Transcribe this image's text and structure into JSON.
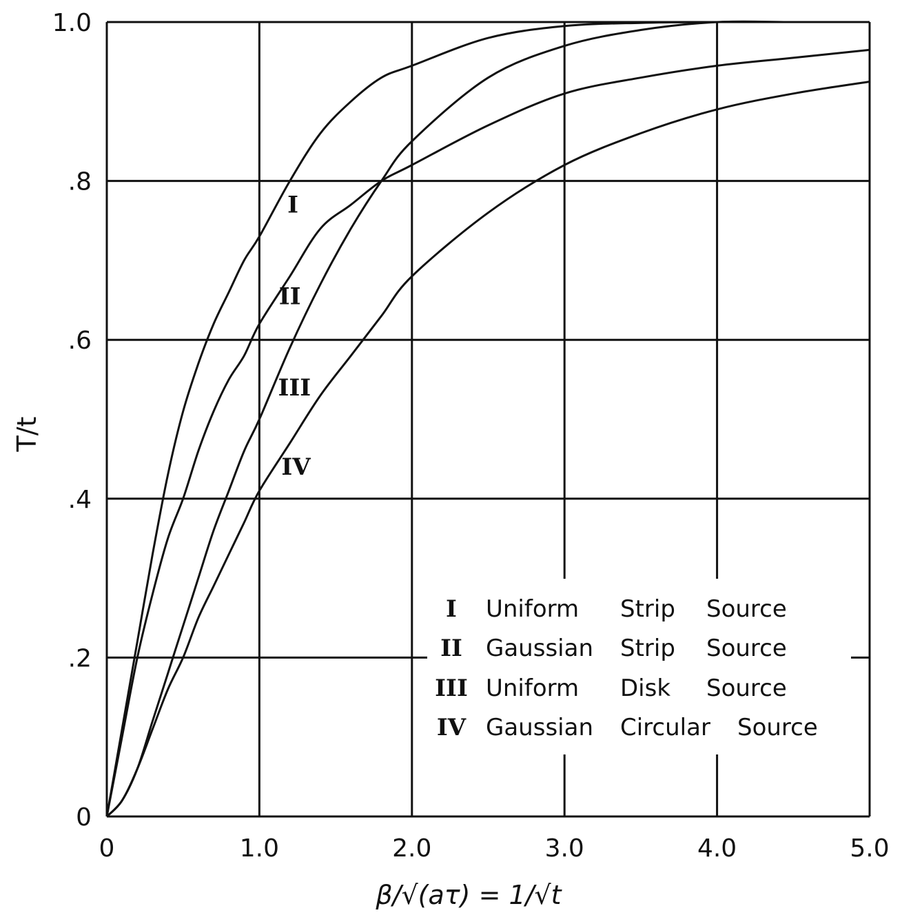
{
  "chart_data": {
    "type": "line",
    "title": "",
    "xlabel": "β/√(aτ) = 1/√t",
    "ylabel": "T/t",
    "xlim": [
      0,
      5
    ],
    "ylim": [
      0,
      1
    ],
    "grid": true,
    "legend_position": "bottom-right",
    "x_ticks": [
      0,
      1,
      2,
      3,
      4,
      5
    ],
    "x_tick_labels": [
      "0",
      "1.0",
      "2.0",
      "3.0",
      "4.0",
      "5.0"
    ],
    "y_ticks": [
      0,
      0.2,
      0.4,
      0.6,
      0.8,
      1.0
    ],
    "y_tick_labels": [
      "0",
      ".2",
      ".4",
      ".6",
      ".8",
      "1.0"
    ],
    "series": [
      {
        "name": "Uniform Strip Source",
        "numeral": "I",
        "x": [
          0,
          0.1,
          0.2,
          0.3,
          0.4,
          0.5,
          0.6,
          0.7,
          0.8,
          0.9,
          1.0,
          1.2,
          1.4,
          1.6,
          1.8,
          2.0,
          2.5,
          3.0,
          3.5,
          4.0,
          4.5,
          5.0
        ],
        "y": [
          0,
          0.11,
          0.22,
          0.33,
          0.43,
          0.51,
          0.57,
          0.62,
          0.66,
          0.7,
          0.73,
          0.8,
          0.86,
          0.9,
          0.93,
          0.945,
          0.98,
          0.995,
          0.999,
          1.0,
          1.0,
          1.0
        ]
      },
      {
        "name": "Gaussian Strip Source",
        "numeral": "II",
        "x": [
          0,
          0.1,
          0.2,
          0.3,
          0.4,
          0.5,
          0.6,
          0.7,
          0.8,
          0.9,
          1.0,
          1.2,
          1.4,
          1.6,
          1.8,
          2.0,
          2.5,
          3.0,
          3.5,
          4.0,
          4.5,
          5.0
        ],
        "y": [
          0,
          0.1,
          0.2,
          0.28,
          0.35,
          0.4,
          0.46,
          0.51,
          0.55,
          0.58,
          0.62,
          0.68,
          0.74,
          0.77,
          0.8,
          0.82,
          0.87,
          0.91,
          0.93,
          0.945,
          0.955,
          0.965
        ]
      },
      {
        "name": "Uniform Disk Source",
        "numeral": "III",
        "x": [
          0,
          0.1,
          0.2,
          0.3,
          0.4,
          0.5,
          0.6,
          0.7,
          0.8,
          0.9,
          1.0,
          1.2,
          1.4,
          1.6,
          1.8,
          2.0,
          2.5,
          3.0,
          3.5,
          4.0,
          4.5,
          5.0
        ],
        "y": [
          0,
          0.02,
          0.06,
          0.12,
          0.18,
          0.24,
          0.3,
          0.36,
          0.41,
          0.46,
          0.5,
          0.59,
          0.67,
          0.74,
          0.8,
          0.85,
          0.93,
          0.97,
          0.99,
          1.0,
          1.0,
          1.0
        ]
      },
      {
        "name": "Gaussian Circular Source",
        "numeral": "IV",
        "x": [
          0,
          0.1,
          0.2,
          0.3,
          0.4,
          0.5,
          0.6,
          0.7,
          0.8,
          0.9,
          1.0,
          1.2,
          1.4,
          1.6,
          1.8,
          2.0,
          2.5,
          3.0,
          3.5,
          4.0,
          4.5,
          5.0
        ],
        "y": [
          0,
          0.02,
          0.06,
          0.11,
          0.16,
          0.2,
          0.25,
          0.29,
          0.33,
          0.37,
          0.41,
          0.47,
          0.53,
          0.58,
          0.63,
          0.68,
          0.76,
          0.82,
          0.86,
          0.89,
          0.91,
          0.925
        ]
      }
    ],
    "curve_labels": [
      "I",
      "II",
      "III",
      "IV"
    ],
    "legend": [
      {
        "numeral": "I",
        "words": [
          "Uniform",
          "Strip",
          "Source"
        ]
      },
      {
        "numeral": "II",
        "words": [
          "Gaussian",
          "Strip",
          "Source"
        ]
      },
      {
        "numeral": "III",
        "words": [
          "Uniform",
          "Disk",
          "Source"
        ]
      },
      {
        "numeral": "IV",
        "words": [
          "Gaussian",
          "Circular",
          "Source"
        ]
      }
    ]
  }
}
